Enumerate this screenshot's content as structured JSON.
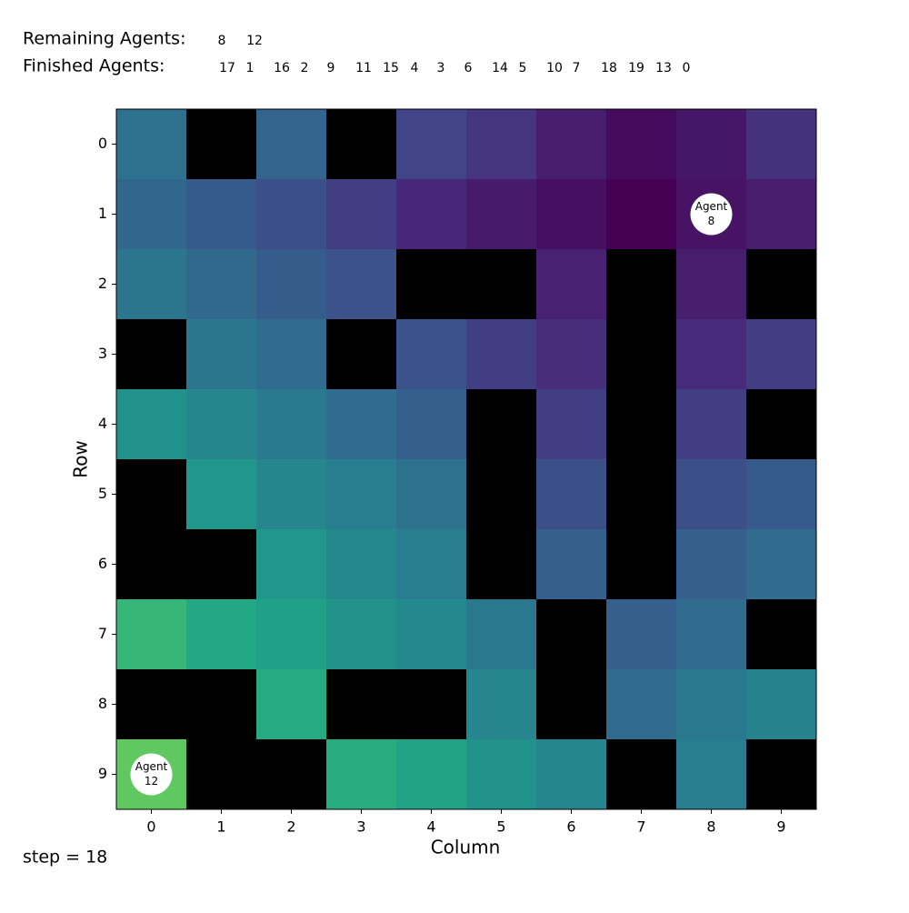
{
  "chart_data": {
    "type": "heatmap",
    "colormap": "viridis",
    "wall_color": "#000000",
    "remaining_label": "Remaining Agents:",
    "remaining": [
      8,
      12
    ],
    "finished_label": "Finished Agents:",
    "finished": [
      17,
      1,
      16,
      2,
      9,
      11,
      15,
      4,
      3,
      6,
      14,
      5,
      10,
      7,
      18,
      19,
      13,
      0
    ],
    "xlabel": "Column",
    "ylabel": "Row",
    "xticks": [
      0,
      1,
      2,
      3,
      4,
      5,
      6,
      7,
      8,
      9
    ],
    "yticks": [
      0,
      1,
      2,
      3,
      4,
      5,
      6,
      7,
      8,
      9
    ],
    "cells": [
      [
        0.37,
        null,
        0.32,
        null,
        0.2,
        0.15,
        0.08,
        0.03,
        0.06,
        0.14
      ],
      [
        0.33,
        0.28,
        0.24,
        0.18,
        0.11,
        0.07,
        0.04,
        0.0,
        0.05,
        0.08
      ],
      [
        0.39,
        0.34,
        0.29,
        0.25,
        null,
        null,
        0.09,
        null,
        0.08,
        null
      ],
      [
        null,
        0.39,
        0.35,
        null,
        0.25,
        0.18,
        0.13,
        null,
        0.12,
        0.18
      ],
      [
        0.5,
        0.45,
        0.41,
        0.35,
        0.3,
        null,
        0.18,
        null,
        0.18,
        null
      ],
      [
        null,
        0.52,
        0.46,
        0.42,
        0.37,
        null,
        0.24,
        null,
        0.24,
        0.28
      ],
      [
        null,
        null,
        0.52,
        0.47,
        0.42,
        null,
        0.3,
        null,
        0.3,
        0.35
      ],
      [
        0.66,
        0.6,
        0.56,
        0.51,
        0.47,
        0.4,
        null,
        0.3,
        0.35,
        null
      ],
      [
        null,
        null,
        0.61,
        null,
        null,
        0.45,
        null,
        0.35,
        0.4,
        0.44
      ],
      [
        0.75,
        null,
        null,
        0.62,
        0.58,
        0.51,
        0.46,
        null,
        0.42,
        null
      ]
    ],
    "agents": [
      {
        "name": "Agent",
        "id": 8,
        "row": 1,
        "col": 8
      },
      {
        "name": "Agent",
        "id": 12,
        "row": 9,
        "col": 0
      }
    ],
    "footer": "step = 18"
  }
}
